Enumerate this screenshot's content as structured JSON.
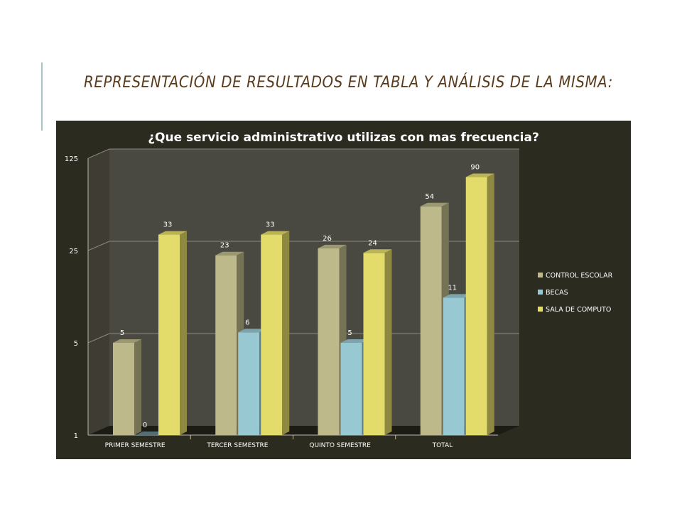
{
  "slide": {
    "title": "REPRESENTACIÓN DE RESULTADOS  EN TABLA Y ANÁLISIS DE LA MISMA:"
  },
  "chart_data": {
    "type": "bar",
    "title": "¿Que servicio administrativo utilizas con mas frecuencia?",
    "categories": [
      "PRIMER SEMESTRE",
      "TERCER SEMESTRE",
      "QUINTO SEMESTRE",
      "TOTAL"
    ],
    "series": [
      {
        "name": "CONTROL ESCOLAR",
        "values": [
          5,
          23,
          26,
          54
        ],
        "color": "#bdb98a"
      },
      {
        "name": "BECAS",
        "values": [
          0,
          6,
          5,
          11
        ],
        "color": "#98c8d2"
      },
      {
        "name": "SALA DE COMPUTO",
        "values": [
          33,
          33,
          24,
          90
        ],
        "color": "#e4dc6a"
      }
    ],
    "y_scale": "log",
    "y_ticks": [
      "1",
      "5",
      "25",
      "125"
    ],
    "y_tick_values": [
      1,
      5,
      25,
      125
    ],
    "ylim": [
      1,
      125
    ],
    "grid": true,
    "legend_position": "right",
    "data_labels": true
  }
}
